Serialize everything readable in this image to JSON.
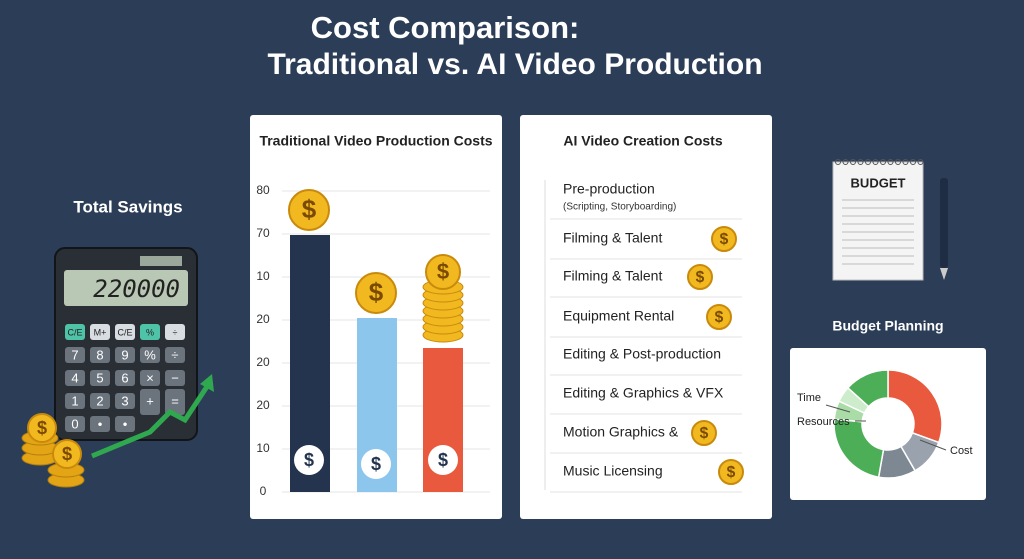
{
  "header": {
    "title": [
      "Cost Comparison:",
      "Traditional vs. AI Video Production"
    ]
  },
  "savings": {
    "title": "Total Savings",
    "display": "220000",
    "keys": [
      [
        "C/E",
        "M+",
        "C/E",
        "%",
        "÷"
      ],
      [
        "7",
        "8",
        "9",
        "%",
        "÷"
      ],
      [
        "4",
        "5",
        "6",
        "×",
        "−"
      ],
      [
        "1",
        "2",
        "3",
        "+",
        "="
      ],
      [
        "0",
        "•",
        "•"
      ]
    ]
  },
  "currency": "$",
  "traditional": {
    "title": "Traditional Video Production Costs",
    "axis_labels": [
      "80",
      "70",
      "10",
      "20",
      "20",
      "20",
      "10",
      "0"
    ]
  },
  "ai": {
    "title": "AI Video Creation Costs",
    "items": [
      {
        "label": "Pre-production",
        "note": "(Scripting, Storyboarding)"
      },
      {
        "label": "Filming & Talent"
      },
      {
        "label": "Filming & Talent"
      },
      {
        "label": "Equipment Rental"
      },
      {
        "label": "Editing & Post-production"
      },
      {
        "label": "Editing & Graphics & VFX"
      },
      {
        "label": "Motion Graphics &"
      },
      {
        "label": "Music Licensing"
      }
    ]
  },
  "budget": {
    "note": "BUDGET",
    "title": "Budget Planning",
    "legend": [
      "Time",
      "Resources",
      "Cost"
    ]
  }
}
